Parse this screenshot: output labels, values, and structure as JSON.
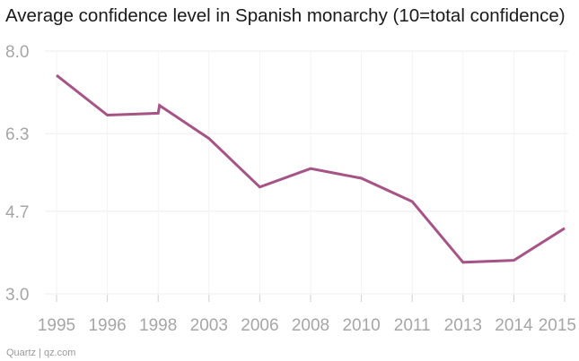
{
  "chart_data": {
    "type": "line",
    "title": "Average confidence level in Spanish monarchy (10=total confidence)",
    "xlabel": "",
    "ylabel": "",
    "categories": [
      "1995",
      "1996",
      "1998",
      "1998",
      "2003",
      "2006",
      "2008",
      "2010",
      "2011",
      "2013",
      "2014",
      "2015"
    ],
    "x_tick_labels": [
      "1995",
      "1996",
      "1998",
      "2003",
      "2006",
      "2008",
      "2010",
      "2011",
      "2013",
      "2014",
      "2015"
    ],
    "y_ticks": [
      "8.0",
      "6.3",
      "4.7",
      "3.0"
    ],
    "ylim": [
      3.0,
      8.0
    ],
    "grid": true,
    "series": [
      {
        "name": "Average confidence level",
        "color": "#a65486",
        "points": [
          {
            "x": "1995",
            "value": 7.5
          },
          {
            "x": "1996",
            "value": 6.68
          },
          {
            "x": "1998",
            "value": 6.72
          },
          {
            "x": "1998",
            "value": 6.88
          },
          {
            "x": "2003",
            "value": 6.2
          },
          {
            "x": "2006",
            "value": 5.2
          },
          {
            "x": "2008",
            "value": 5.58
          },
          {
            "x": "2010",
            "value": 5.38
          },
          {
            "x": "2011",
            "value": 4.9
          },
          {
            "x": "2013",
            "value": 3.65
          },
          {
            "x": "2014",
            "value": 3.69
          },
          {
            "x": "2015",
            "value": 4.35
          }
        ]
      }
    ]
  },
  "footer": {
    "credit": "Quartz | qz.com"
  }
}
